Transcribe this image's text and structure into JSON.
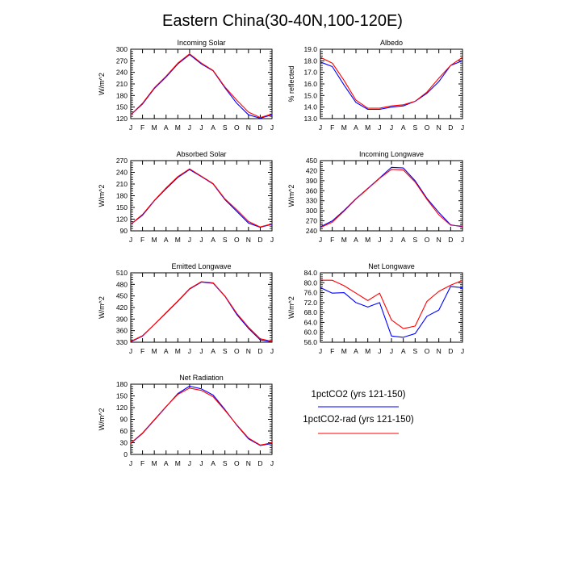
{
  "title": "Eastern China(30-40N,100-120E)",
  "months": [
    "J",
    "F",
    "M",
    "A",
    "M",
    "J",
    "J",
    "A",
    "S",
    "O",
    "N",
    "D",
    "J"
  ],
  "legend": [
    {
      "label": "1pctCO2 (yrs 121-150)",
      "color": "#0000ff"
    },
    {
      "label": "1pctCO2-rad (yrs 121-150)",
      "color": "#ff0000"
    }
  ],
  "chart_data": [
    {
      "type": "line",
      "title": "Incoming Solar",
      "ylabel": "W/m^2",
      "ylim": [
        120,
        300
      ],
      "yticks": [
        "120",
        "150",
        "180",
        "210",
        "240",
        "270",
        "300"
      ],
      "categories": [
        "J",
        "F",
        "M",
        "A",
        "M",
        "J",
        "J",
        "A",
        "S",
        "O",
        "N",
        "D",
        "J"
      ],
      "series": [
        {
          "name": "1pctCO2 (yrs 121-150)",
          "color": "#0000ff",
          "values": [
            130,
            158,
            198,
            228,
            262,
            286,
            262,
            244,
            200,
            160,
            130,
            121,
            130
          ]
        },
        {
          "name": "1pctCO2-rad (yrs 121-150)",
          "color": "#ff0000",
          "values": [
            130,
            160,
            200,
            230,
            264,
            288,
            264,
            245,
            202,
            168,
            137,
            123,
            132
          ]
        }
      ]
    },
    {
      "type": "line",
      "title": "Albedo",
      "ylabel": "% reflected",
      "ylim": [
        13.0,
        19.0
      ],
      "yticks": [
        "13.0",
        "14.0",
        "15.0",
        "16.0",
        "17.0",
        "18.0",
        "19.0"
      ],
      "categories": [
        "J",
        "F",
        "M",
        "A",
        "M",
        "J",
        "J",
        "A",
        "S",
        "O",
        "N",
        "D",
        "J"
      ],
      "series": [
        {
          "name": "1pctCO2 (yrs 121-150)",
          "color": "#0000ff",
          "values": [
            17.9,
            17.5,
            15.9,
            14.4,
            13.8,
            13.8,
            14.0,
            14.1,
            14.5,
            15.2,
            16.2,
            17.6,
            18.0
          ]
        },
        {
          "name": "1pctCO2-rad (yrs 121-150)",
          "color": "#ff0000",
          "values": [
            18.3,
            17.8,
            16.3,
            14.6,
            13.9,
            13.9,
            14.1,
            14.2,
            14.5,
            15.3,
            16.5,
            17.6,
            18.3
          ]
        }
      ]
    },
    {
      "type": "line",
      "title": "Absorbed Solar",
      "ylabel": "W/m^2",
      "ylim": [
        90,
        270
      ],
      "yticks": [
        "90",
        "120",
        "150",
        "180",
        "210",
        "240",
        "270"
      ],
      "categories": [
        "J",
        "F",
        "M",
        "A",
        "M",
        "J",
        "J",
        "A",
        "S",
        "O",
        "N",
        "D",
        "J"
      ],
      "series": [
        {
          "name": "1pctCO2 (yrs 121-150)",
          "color": "#0000ff",
          "values": [
            107,
            130,
            167,
            198,
            227,
            247,
            229,
            210,
            170,
            140,
            110,
            99,
            107
          ]
        },
        {
          "name": "1pctCO2-rad (yrs 121-150)",
          "color": "#ff0000",
          "values": [
            107,
            132,
            168,
            200,
            229,
            249,
            230,
            211,
            172,
            144,
            114,
            100,
            108
          ]
        }
      ]
    },
    {
      "type": "line",
      "title": "Incoming Longwave",
      "ylabel": "W/m^2",
      "ylim": [
        240,
        450
      ],
      "yticks": [
        "240",
        "270",
        "300",
        "330",
        "360",
        "390",
        "420",
        "450"
      ],
      "categories": [
        "J",
        "F",
        "M",
        "A",
        "M",
        "J",
        "J",
        "A",
        "S",
        "O",
        "N",
        "D",
        "J"
      ],
      "series": [
        {
          "name": "1pctCO2 (yrs 121-150)",
          "color": "#0000ff",
          "values": [
            252,
            270,
            301,
            336,
            367,
            398,
            430,
            428,
            390,
            337,
            295,
            258,
            252
          ]
        },
        {
          "name": "1pctCO2-rad (yrs 121-150)",
          "color": "#ff0000",
          "values": [
            250,
            266,
            299,
            335,
            366,
            397,
            424,
            422,
            386,
            334,
            288,
            257,
            254
          ]
        }
      ]
    },
    {
      "type": "line",
      "title": "Emitted Longwave",
      "ylabel": "W/m^2",
      "ylim": [
        330,
        510
      ],
      "yticks": [
        "330",
        "360",
        "390",
        "420",
        "450",
        "480",
        "510"
      ],
      "categories": [
        "J",
        "F",
        "M",
        "A",
        "M",
        "J",
        "J",
        "A",
        "S",
        "O",
        "N",
        "D",
        "J"
      ],
      "series": [
        {
          "name": "1pctCO2 (yrs 121-150)",
          "color": "#0000ff",
          "values": [
            331,
            346,
            376,
            406,
            436,
            468,
            486,
            483,
            449,
            402,
            366,
            336,
            331
          ]
        },
        {
          "name": "1pctCO2-rad (yrs 121-150)",
          "color": "#ff0000",
          "values": [
            332,
            347,
            376,
            407,
            437,
            469,
            487,
            484,
            450,
            405,
            369,
            339,
            332
          ]
        }
      ]
    },
    {
      "type": "line",
      "title": "Net Longwave",
      "ylabel": "W/m^2",
      "ylim": [
        56.0,
        84.0
      ],
      "yticks": [
        "56.0",
        "60.0",
        "64.0",
        "68.0",
        "72.0",
        "76.0",
        "80.0",
        "84.0"
      ],
      "categories": [
        "J",
        "F",
        "M",
        "A",
        "M",
        "J",
        "J",
        "A",
        "S",
        "O",
        "N",
        "D",
        "J"
      ],
      "series": [
        {
          "name": "1pctCO2 (yrs 121-150)",
          "color": "#0000ff",
          "values": [
            78.0,
            75.8,
            76.0,
            72.0,
            70.2,
            72.0,
            58.5,
            58.0,
            59.5,
            66.5,
            69.0,
            78.5,
            78.0
          ]
        },
        {
          "name": "1pctCO2-rad (yrs 121-150)",
          "color": "#ff0000",
          "values": [
            81.0,
            81.0,
            78.8,
            75.8,
            72.8,
            75.8,
            65.0,
            61.5,
            62.5,
            72.5,
            76.5,
            79.0,
            81.0
          ]
        }
      ]
    },
    {
      "type": "line",
      "title": "Net Radiation",
      "ylabel": "W/m^2",
      "ylim": [
        0,
        180
      ],
      "yticks": [
        "0",
        "30",
        "60",
        "90",
        "120",
        "150",
        "180"
      ],
      "categories": [
        "J",
        "F",
        "M",
        "A",
        "M",
        "J",
        "J",
        "A",
        "S",
        "O",
        "N",
        "D",
        "J"
      ],
      "series": [
        {
          "name": "1pctCO2 (yrs 121-150)",
          "color": "#0000ff",
          "values": [
            28,
            54,
            88,
            122,
            156,
            175,
            168,
            152,
            115,
            75,
            40,
            23,
            28
          ]
        },
        {
          "name": "1pctCO2-rad (yrs 121-150)",
          "color": "#ff0000",
          "values": [
            29,
            55,
            89,
            123,
            154,
            170,
            164,
            148,
            113,
            76,
            42,
            24,
            30
          ]
        }
      ]
    }
  ]
}
